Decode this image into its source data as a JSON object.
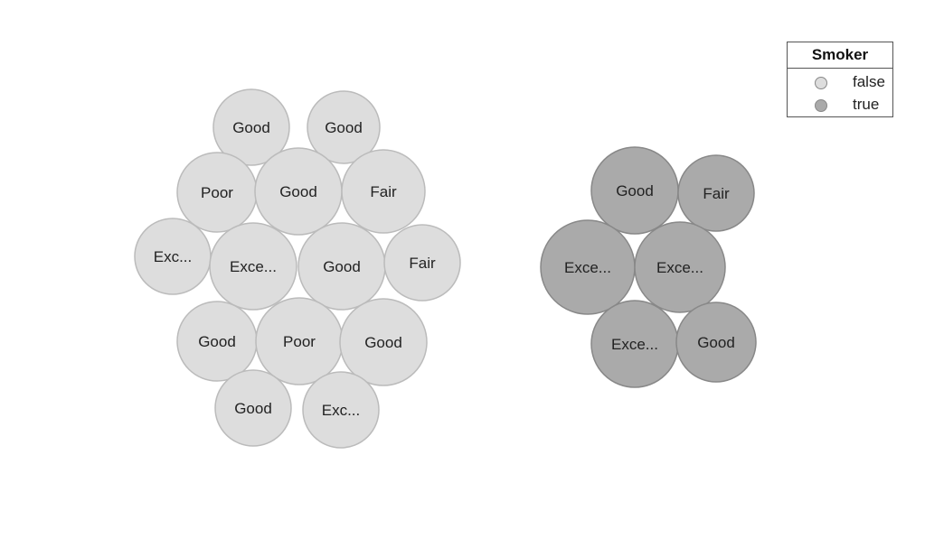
{
  "chart_data": {
    "type": "bubble",
    "title": "",
    "legend": {
      "title": "Smoker",
      "placement": "top-right",
      "items": [
        {
          "label": "false",
          "color": "#dddddd"
        },
        {
          "label": "true",
          "color": "#aaaaaa"
        }
      ]
    },
    "groups": [
      {
        "name": "false",
        "color": "#dddddd",
        "stroke": "#bbbbbb",
        "items": [
          {
            "label": "Good"
          },
          {
            "label": "Good"
          },
          {
            "label": "Poor"
          },
          {
            "label": "Good"
          },
          {
            "label": "Fair"
          },
          {
            "label": "Exc..."
          },
          {
            "label": "Exce..."
          },
          {
            "label": "Good"
          },
          {
            "label": "Fair"
          },
          {
            "label": "Good"
          },
          {
            "label": "Poor"
          },
          {
            "label": "Good"
          },
          {
            "label": "Good"
          },
          {
            "label": "Exc..."
          }
        ]
      },
      {
        "name": "true",
        "color": "#aaaaaa",
        "stroke": "#888888",
        "items": [
          {
            "label": "Good"
          },
          {
            "label": "Fair"
          },
          {
            "label": "Exce..."
          },
          {
            "label": "Exce..."
          },
          {
            "label": "Exce..."
          },
          {
            "label": "Good"
          }
        ]
      }
    ]
  }
}
